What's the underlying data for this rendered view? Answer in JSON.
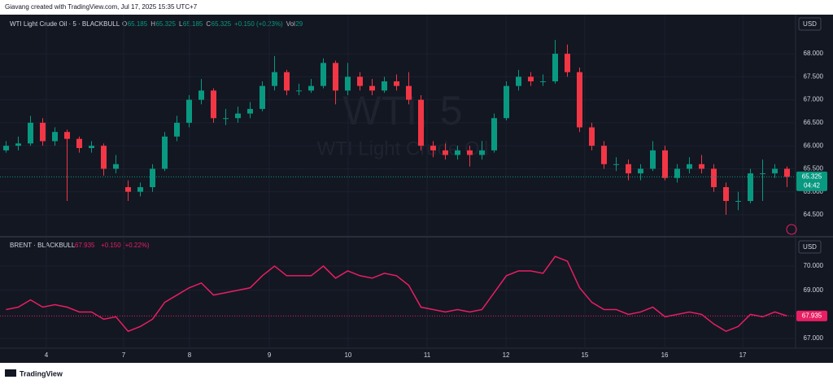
{
  "header": {
    "credit": "Giavang created with TradingView.com, Jul 17, 2025 15:35 UTC+7"
  },
  "footer": {
    "brand": "TradingView"
  },
  "chart_data": [
    {
      "type": "candlestick",
      "title": "WTI Light Crude Oil · 5 · BLACKBULL",
      "watermark": "WTI, 5",
      "watermark_sub": "WTI Light Crude Oil",
      "legend": {
        "o_label": "O",
        "o": "65.185",
        "h_label": "H",
        "h": "65.325",
        "l_label": "L",
        "l": "65.185",
        "c_label": "C",
        "c": "65.325",
        "change": "+0.150 (+0.23%)",
        "vol_label": "Vol",
        "vol": "29"
      },
      "currency": "USD",
      "last_price": {
        "value": 65.325,
        "label": "65.325"
      },
      "countdown": "04:42",
      "up_color": "#089981",
      "down_color": "#f23645",
      "xlim": [
        -0.5,
        64.7
      ],
      "xticks": [
        {
          "value": 3.3,
          "label": "4"
        },
        {
          "value": 9.63,
          "label": "7"
        },
        {
          "value": 15.03,
          "label": "8"
        },
        {
          "value": 21.57,
          "label": "9"
        },
        {
          "value": 28.03,
          "label": "10"
        },
        {
          "value": 34.5,
          "label": "11"
        },
        {
          "value": 40.97,
          "label": "12"
        },
        {
          "value": 47.43,
          "label": "15"
        },
        {
          "value": 53.97,
          "label": "16"
        },
        {
          "value": 60.37,
          "label": "17"
        }
      ],
      "ylim": [
        64.04,
        68.85
      ],
      "yticks": [
        {
          "value": 64.5,
          "label": "64.500"
        },
        {
          "value": 65,
          "label": "65.000"
        },
        {
          "value": 65.5,
          "label": "65.500"
        },
        {
          "value": 66,
          "label": "66.000"
        },
        {
          "value": 66.5,
          "label": "66.500"
        },
        {
          "value": 67,
          "label": "67.000"
        },
        {
          "value": 67.5,
          "label": "67.500"
        },
        {
          "value": 68,
          "label": "68.000"
        }
      ],
      "ohlc": [
        [
          65.9,
          66.1,
          65.85,
          66.0
        ],
        [
          66.0,
          66.2,
          65.9,
          66.05
        ],
        [
          66.05,
          66.65,
          66.0,
          66.5
        ],
        [
          66.5,
          66.6,
          66.0,
          66.1
        ],
        [
          66.1,
          66.4,
          66.0,
          66.3
        ],
        [
          66.3,
          66.35,
          64.8,
          66.15
        ],
        [
          66.15,
          66.2,
          65.85,
          65.95
        ],
        [
          65.95,
          66.1,
          65.85,
          66.0
        ],
        [
          66.0,
          66.05,
          65.35,
          65.5
        ],
        [
          65.5,
          65.8,
          65.4,
          65.6
        ],
        [
          65.1,
          65.25,
          64.8,
          65.0
        ],
        [
          65.0,
          65.2,
          64.9,
          65.1
        ],
        [
          65.1,
          65.6,
          65.0,
          65.5
        ],
        [
          65.5,
          66.3,
          65.45,
          66.2
        ],
        [
          66.2,
          66.65,
          66.1,
          66.5
        ],
        [
          66.5,
          67.1,
          66.4,
          67.0
        ],
        [
          67.0,
          67.45,
          66.9,
          67.2
        ],
        [
          67.2,
          67.25,
          66.5,
          66.6
        ],
        [
          66.6,
          66.8,
          66.45,
          66.6
        ],
        [
          66.6,
          66.85,
          66.5,
          66.7
        ],
        [
          66.7,
          66.95,
          66.6,
          66.8
        ],
        [
          66.8,
          67.4,
          66.75,
          67.3
        ],
        [
          67.3,
          67.95,
          67.2,
          67.6
        ],
        [
          67.6,
          67.65,
          67.1,
          67.2
        ],
        [
          67.2,
          67.35,
          67.1,
          67.2
        ],
        [
          67.2,
          67.45,
          67.15,
          67.3
        ],
        [
          67.3,
          67.9,
          67.25,
          67.8
        ],
        [
          67.8,
          67.85,
          66.9,
          67.2
        ],
        [
          67.2,
          67.8,
          67.1,
          67.5
        ],
        [
          67.5,
          67.6,
          67.2,
          67.3
        ],
        [
          67.3,
          67.45,
          67.1,
          67.2
        ],
        [
          67.2,
          67.5,
          67.15,
          67.4
        ],
        [
          67.4,
          67.55,
          67.2,
          67.3
        ],
        [
          67.3,
          67.6,
          66.9,
          67.0
        ],
        [
          67.0,
          67.1,
          65.9,
          66.0
        ],
        [
          66.0,
          66.1,
          65.75,
          65.9
        ],
        [
          65.9,
          66.05,
          65.7,
          65.8
        ],
        [
          65.8,
          66.0,
          65.7,
          65.9
        ],
        [
          65.9,
          66.0,
          65.55,
          65.8
        ],
        [
          65.8,
          66.1,
          65.7,
          65.9
        ],
        [
          65.9,
          66.7,
          65.85,
          66.6
        ],
        [
          66.6,
          67.4,
          66.55,
          67.3
        ],
        [
          67.3,
          67.65,
          67.2,
          67.5
        ],
        [
          67.5,
          67.6,
          67.3,
          67.4
        ],
        [
          67.4,
          67.55,
          67.3,
          67.4
        ],
        [
          67.4,
          68.3,
          67.35,
          68.0
        ],
        [
          68.0,
          68.2,
          67.5,
          67.6
        ],
        [
          67.6,
          67.7,
          66.3,
          66.4
        ],
        [
          66.4,
          66.5,
          65.9,
          66.0
        ],
        [
          66.0,
          66.1,
          65.5,
          65.6
        ],
        [
          65.6,
          65.75,
          65.45,
          65.6
        ],
        [
          65.6,
          65.7,
          65.25,
          65.4
        ],
        [
          65.4,
          65.6,
          65.25,
          65.5
        ],
        [
          65.5,
          66.1,
          65.45,
          65.9
        ],
        [
          65.9,
          66.0,
          65.25,
          65.3
        ],
        [
          65.3,
          65.6,
          65.2,
          65.5
        ],
        [
          65.5,
          65.75,
          65.4,
          65.6
        ],
        [
          65.6,
          65.8,
          65.4,
          65.5
        ],
        [
          65.5,
          65.6,
          65.0,
          65.1
        ],
        [
          65.1,
          65.2,
          64.5,
          64.8
        ],
        [
          64.8,
          65.0,
          64.6,
          64.8
        ],
        [
          64.8,
          65.5,
          64.75,
          65.4
        ],
        [
          65.4,
          65.7,
          64.8,
          65.4
        ],
        [
          65.4,
          65.6,
          65.3,
          65.5
        ],
        [
          65.5,
          65.55,
          65.1,
          65.325
        ]
      ]
    },
    {
      "type": "line",
      "title": "BRENT · BLACKBULL",
      "legend": {
        "last": "67.935",
        "change": "+0.150 (+0.22%)"
      },
      "currency": "USD",
      "last_price": {
        "value": 67.935,
        "label": "67.935"
      },
      "color": "#e91e63",
      "xlim": [
        -0.5,
        64.7
      ],
      "ylim": [
        66.6,
        71.18
      ],
      "yticks": [
        {
          "value": 67,
          "label": "67.000"
        },
        {
          "value": 69,
          "label": "69.000"
        },
        {
          "value": 70,
          "label": "70.000"
        }
      ],
      "values": [
        68.2,
        68.3,
        68.6,
        68.3,
        68.4,
        68.3,
        68.1,
        68.1,
        67.8,
        67.9,
        67.3,
        67.5,
        67.8,
        68.5,
        68.8,
        69.1,
        69.3,
        68.8,
        68.9,
        69.0,
        69.1,
        69.6,
        70.0,
        69.6,
        69.6,
        69.6,
        70.0,
        69.5,
        69.8,
        69.6,
        69.5,
        69.7,
        69.6,
        69.2,
        68.3,
        68.2,
        68.1,
        68.2,
        68.1,
        68.2,
        68.9,
        69.6,
        69.8,
        69.8,
        69.7,
        70.4,
        70.2,
        69.1,
        68.5,
        68.2,
        68.2,
        68.0,
        68.1,
        68.3,
        67.9,
        68.0,
        68.1,
        68.0,
        67.6,
        67.3,
        67.5,
        68.0,
        67.9,
        68.1,
        67.935
      ]
    }
  ]
}
